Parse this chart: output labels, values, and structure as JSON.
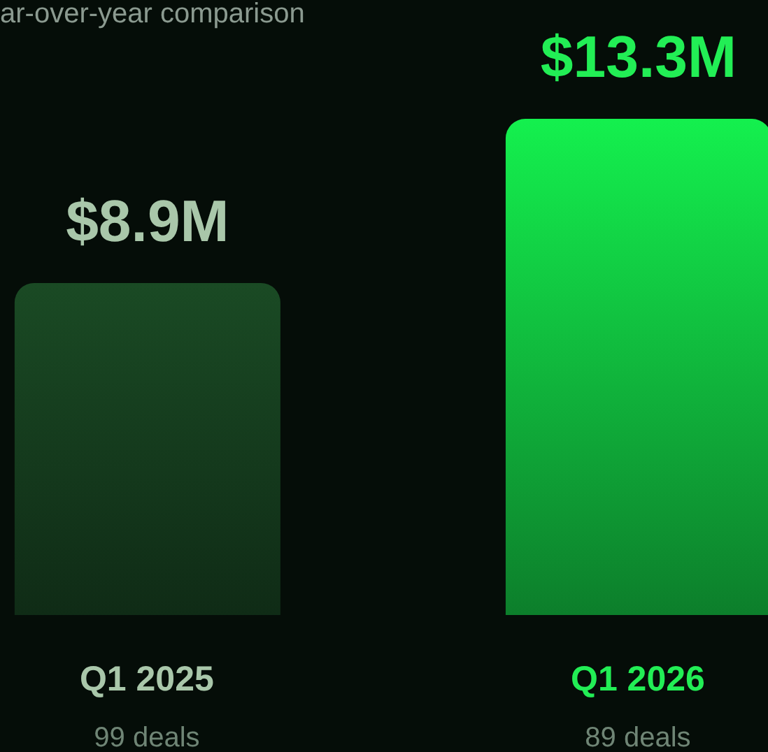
{
  "chart_data": {
    "type": "bar",
    "subtitle": "ar-over-year comparison",
    "categories": [
      "Q1 2025",
      "Q1 2026"
    ],
    "values": [
      8.9,
      13.3
    ],
    "colors": [
      "#1a4a24",
      "#14f04e"
    ],
    "value_labels": [
      "$8.9M",
      "$13.3M"
    ],
    "annotations": [
      "99 deals",
      "89 deals"
    ]
  }
}
